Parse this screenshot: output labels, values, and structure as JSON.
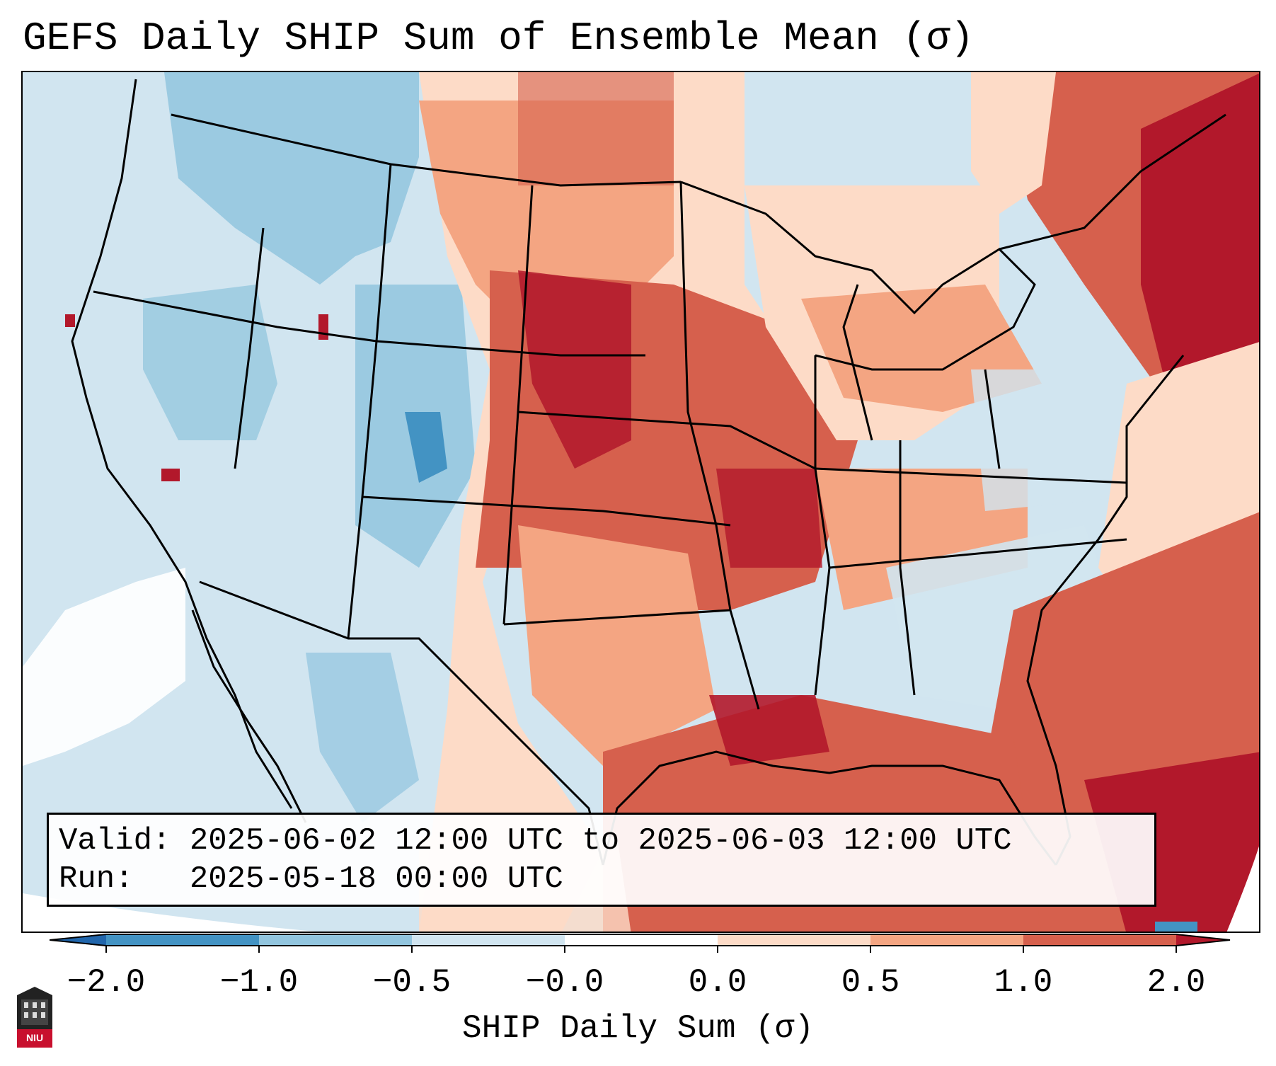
{
  "title": "GEFS Daily SHIP Sum of Ensemble Mean (σ)",
  "info": {
    "valid_label": "Valid:",
    "valid_value": "2025-06-02 12:00 UTC to 2025-06-03 12:00 UTC",
    "run_label": "Run:",
    "run_value": "2025-05-18 00:00 UTC"
  },
  "colorbar": {
    "title": "SHIP Daily Sum (σ)",
    "ticks": [
      "−2.0",
      "−1.0",
      "−0.5",
      "−0.0",
      "0.0",
      "0.5",
      "1.0",
      "2.0"
    ],
    "colors": [
      "#2166ac",
      "#4393c3",
      "#92c5de",
      "#d1e5f0",
      "#ffffff",
      "#fddbc7",
      "#f4a582",
      "#d6604d",
      "#b2182b"
    ]
  },
  "logo": {
    "text": "NIU"
  }
}
